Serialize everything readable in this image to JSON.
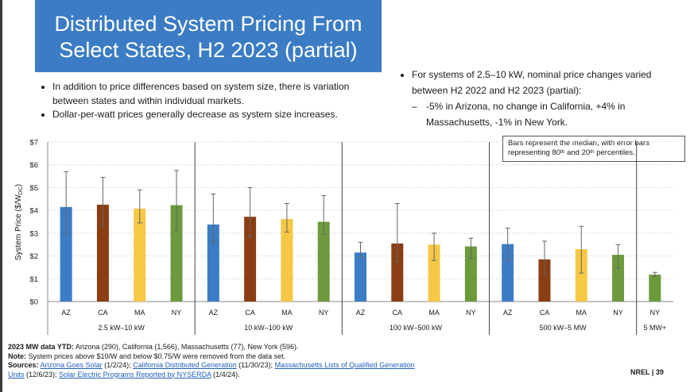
{
  "slide": {
    "title_line1": "Distributed System Pricing From",
    "title_line2": "Select States, H2 2023 (partial)",
    "bullets_left": [
      "In addition to price differences based on system size, there is variation between states and within individual markets.",
      "Dollar-per-watt prices generally decrease as system size increases."
    ],
    "bullet_right": "For systems of 2.5–10 kW, nominal price changes varied between H2 2022 and H2 2023 (partial):",
    "sub_bullet_right": "-5% in Arizona, no change in California, +4% in Massachusetts, -1% in New York.",
    "note_box": {
      "text_before": "Bars represent the median, with error bars representing 80",
      "sup1": "th",
      "text_mid": " and 20",
      "sup2": "th",
      "text_after": " percentiles."
    },
    "footer": {
      "line1_bold": "2023 MW data YTD:",
      "line1": " Arizona (290), California (1,566), Massachusetts (77), New York (596).",
      "line2_bold": "Note:",
      "line2": " System prices above $10/W and below $0.75/W were removed from the data set.",
      "line3_bold": "Sources:",
      "src1": "Arizona Goes Solar",
      "src1_date": " (1/2/24); ",
      "src2": "California Distributed Generation",
      "src2_date": " (11/30/23); ",
      "src3": "Massachusetts Lists of Qualified Generation Units",
      "src3_date": " (12/6/23); ",
      "src4": "Solar Electric Programs Reported by NYSERDA",
      "src4_date": " (1/4/24)."
    },
    "page_label": "NREL  |  39"
  },
  "colors": {
    "AZ": "#3b7cc4",
    "CA": "#8b3e14",
    "MA": "#f6c845",
    "NY": "#6c9a3d",
    "title_bg": "#3b7cc4"
  },
  "chart_data": {
    "type": "bar",
    "ylabel": "System Price ($/W",
    "ylabel_sub": "DC",
    "ylabel_end": ")",
    "ylim": [
      0,
      7
    ],
    "yticks": [
      "$0",
      "$1",
      "$2",
      "$3",
      "$4",
      "$5",
      "$6",
      "$7"
    ],
    "groups": [
      {
        "label": "2.5 kW–10 kW",
        "bars": [
          {
            "state": "AZ",
            "median": 4.15,
            "p20": 2.95,
            "p80": 5.7
          },
          {
            "state": "CA",
            "median": 4.25,
            "p20": 3.3,
            "p80": 5.45
          },
          {
            "state": "MA",
            "median": 4.08,
            "p20": 3.45,
            "p80": 4.9
          },
          {
            "state": "NY",
            "median": 4.23,
            "p20": 3.1,
            "p80": 5.75
          }
        ]
      },
      {
        "label": "10 kW–100 kW",
        "bars": [
          {
            "state": "AZ",
            "median": 3.38,
            "p20": 2.6,
            "p80": 4.72
          },
          {
            "state": "CA",
            "median": 3.72,
            "p20": 2.85,
            "p80": 5.0
          },
          {
            "state": "MA",
            "median": 3.62,
            "p20": 3.05,
            "p80": 4.3
          },
          {
            "state": "NY",
            "median": 3.5,
            "p20": 2.95,
            "p80": 4.65
          }
        ]
      },
      {
        "label": "100 kW–500 kW",
        "bars": [
          {
            "state": "AZ",
            "median": 2.15,
            "p20": 1.95,
            "p80": 2.6
          },
          {
            "state": "CA",
            "median": 2.55,
            "p20": 1.75,
            "p80": 4.3
          },
          {
            "state": "MA",
            "median": 2.5,
            "p20": 1.8,
            "p80": 3.0
          },
          {
            "state": "NY",
            "median": 2.42,
            "p20": 1.9,
            "p80": 2.78
          }
        ]
      },
      {
        "label": "500 kW–5 MW",
        "bars": [
          {
            "state": "AZ",
            "median": 2.52,
            "p20": 1.8,
            "p80": 3.22
          },
          {
            "state": "CA",
            "median": 1.85,
            "p20": 1.15,
            "p80": 2.65
          },
          {
            "state": "MA",
            "median": 2.3,
            "p20": 1.25,
            "p80": 3.3
          },
          {
            "state": "NY",
            "median": 2.05,
            "p20": 1.45,
            "p80": 2.5
          }
        ]
      },
      {
        "label": "5 MW+",
        "bars": [
          {
            "state": "NY",
            "median": 1.18,
            "p20": 1.1,
            "p80": 1.28
          }
        ]
      }
    ]
  }
}
